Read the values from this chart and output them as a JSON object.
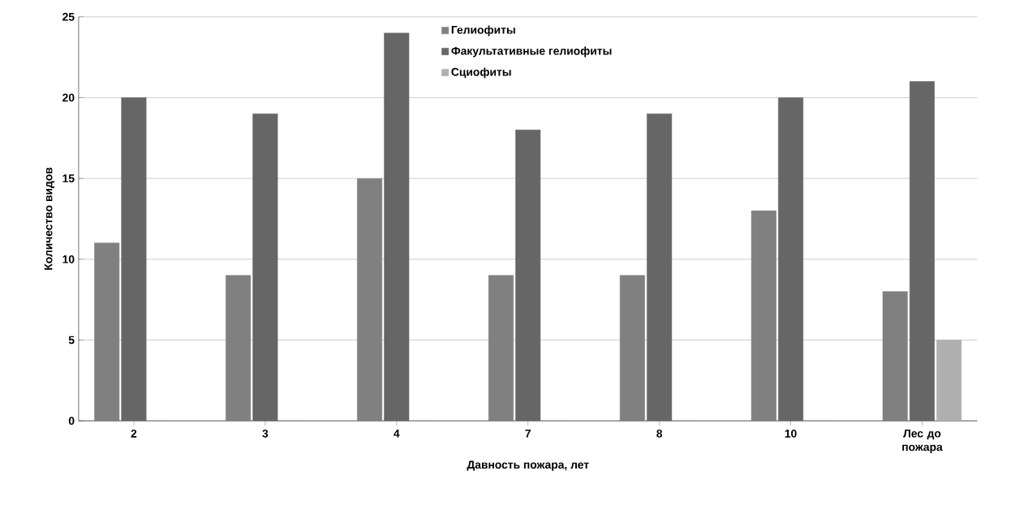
{
  "chart_data": {
    "type": "bar",
    "xlabel": "Давность пожара, лет",
    "ylabel": "Количество видов",
    "categories": [
      "2",
      "3",
      "4",
      "7",
      "8",
      "10",
      "Лес до пожара"
    ],
    "series": [
      {
        "name": "Гелиофиты",
        "color": "#808080",
        "values": [
          11,
          9,
          15,
          9,
          9,
          13,
          8
        ]
      },
      {
        "name": "Факультативные гелиофиты",
        "color": "#666666",
        "values": [
          20,
          19,
          24,
          18,
          19,
          20,
          21
        ]
      },
      {
        "name": "Сциофиты",
        "color": "#b0b0b0",
        "values": [
          0,
          0,
          0,
          0,
          0,
          0,
          5
        ]
      }
    ],
    "ylim": [
      0,
      25
    ],
    "yticks": [
      0,
      5,
      10,
      15,
      20,
      25
    ],
    "grid": "y",
    "legend": "top"
  }
}
